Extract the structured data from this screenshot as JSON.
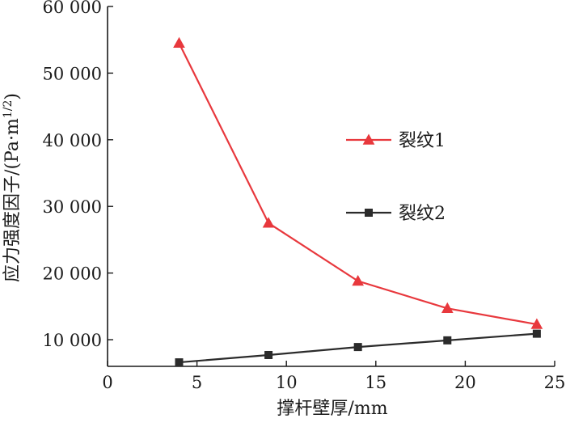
{
  "chart_data": {
    "type": "line",
    "xlabel": "撑杆壁厚/mm",
    "ylabel_main": "应力强度因子/(Pa·m",
    "ylabel_sup": "1/2",
    "ylabel_close": ")",
    "xlim": [
      0,
      25
    ],
    "ylim": [
      6000,
      60000
    ],
    "x_ticks": [
      0,
      5,
      10,
      15,
      20,
      25
    ],
    "x_tick_labels": [
      "0",
      "5",
      "10",
      "15",
      "20",
      "25"
    ],
    "y_ticks": [
      10000,
      20000,
      30000,
      40000,
      50000,
      60000
    ],
    "y_tick_labels": [
      "10 000",
      "20 000",
      "30 000",
      "40 000",
      "50 000",
      "60 000"
    ],
    "grid": false,
    "legend_position": "right",
    "series": [
      {
        "name": "裂纹1",
        "marker": "triangle",
        "color": "#e8383d",
        "x": [
          4,
          9,
          14,
          19,
          24
        ],
        "y": [
          54500,
          27500,
          18800,
          14700,
          12300
        ]
      },
      {
        "name": "裂纹2",
        "marker": "square",
        "color": "#2b2b2b",
        "x": [
          4,
          9,
          14,
          19,
          24
        ],
        "y": [
          6600,
          7700,
          8900,
          9900,
          10900
        ]
      }
    ]
  }
}
